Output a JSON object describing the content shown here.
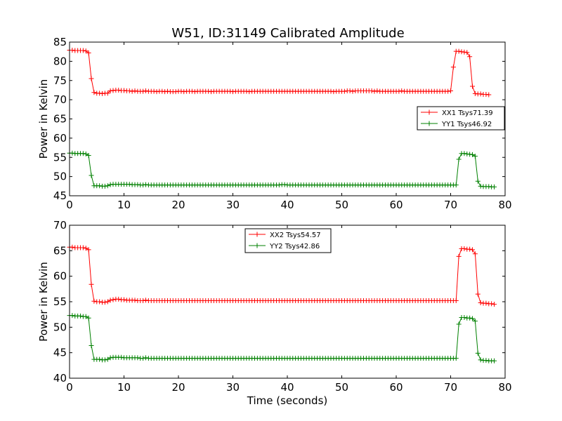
{
  "figure": {
    "title": "W51, ID:31149 Calibrated Amplitude"
  },
  "chart_data": [
    {
      "type": "line",
      "title": "W51, ID:31149 Calibrated Amplitude",
      "xlabel": "",
      "ylabel": "Power in Kelvin",
      "xlim": [
        0,
        80
      ],
      "ylim": [
        45,
        85
      ],
      "x_ticks": [
        0,
        10,
        20,
        30,
        40,
        50,
        60,
        70,
        80
      ],
      "y_ticks": [
        45,
        50,
        55,
        60,
        65,
        70,
        75,
        80,
        85
      ],
      "grid": false,
      "legend_position": "center-right",
      "x_start": 0,
      "x_step": 0.5,
      "series": [
        {
          "name": "XX1 Tsys71.39",
          "color": "#ff0000",
          "marker": "+",
          "values": [
            82.9,
            82.9,
            82.8,
            82.8,
            82.8,
            82.8,
            82.7,
            82.2,
            75.5,
            71.9,
            71.7,
            71.7,
            71.6,
            71.7,
            71.7,
            72.3,
            72.4,
            72.5,
            72.5,
            72.4,
            72.4,
            72.3,
            72.3,
            72.2,
            72.3,
            72.2,
            72.2,
            72.2,
            72.3,
            72.2,
            72.2,
            72.2,
            72.1,
            72.2,
            72.2,
            72.1,
            72.2,
            72.1,
            72.1,
            72.1,
            72.2,
            72.2,
            72.1,
            72.2,
            72.2,
            72.2,
            72.1,
            72.2,
            72.2,
            72.2,
            72.2,
            72.2,
            72.1,
            72.2,
            72.2,
            72.2,
            72.2,
            72.2,
            72.2,
            72.2,
            72.1,
            72.2,
            72.2,
            72.2,
            72.2,
            72.2,
            72.1,
            72.2,
            72.2,
            72.2,
            72.2,
            72.2,
            72.2,
            72.2,
            72.2,
            72.2,
            72.2,
            72.2,
            72.2,
            72.2,
            72.2,
            72.2,
            72.2,
            72.2,
            72.2,
            72.2,
            72.2,
            72.2,
            72.2,
            72.2,
            72.2,
            72.2,
            72.2,
            72.2,
            72.2,
            72.2,
            72.2,
            72.1,
            72.2,
            72.2,
            72.2,
            72.2,
            72.3,
            72.3,
            72.2,
            72.3,
            72.3,
            72.3,
            72.3,
            72.3,
            72.3,
            72.3,
            72.2,
            72.3,
            72.2,
            72.2,
            72.2,
            72.2,
            72.2,
            72.2,
            72.2,
            72.2,
            72.3,
            72.2,
            72.2,
            72.2,
            72.2,
            72.2,
            72.2,
            72.2,
            72.2,
            72.2,
            72.2,
            72.2,
            72.2,
            72.2,
            72.2,
            72.2,
            72.2,
            72.2,
            72.3,
            78.5,
            82.6,
            82.6,
            82.5,
            82.4,
            82.3,
            81.2,
            73.5,
            71.6,
            71.5,
            71.5,
            71.4,
            71.4,
            71.3
          ]
        },
        {
          "name": "YY1 Tsys46.92",
          "color": "#008000",
          "marker": "+",
          "values": [
            56.1,
            56.1,
            56.0,
            56.0,
            56.0,
            56.0,
            55.9,
            55.5,
            50.3,
            47.6,
            47.6,
            47.6,
            47.5,
            47.5,
            47.6,
            47.9,
            48.0,
            48.0,
            48.0,
            48.0,
            48.0,
            48.0,
            48.0,
            47.9,
            47.9,
            47.9,
            47.8,
            47.8,
            47.9,
            47.8,
            47.8,
            47.8,
            47.8,
            47.8,
            47.8,
            47.8,
            47.8,
            47.8,
            47.8,
            47.8,
            47.8,
            47.8,
            47.8,
            47.8,
            47.8,
            47.8,
            47.8,
            47.8,
            47.8,
            47.8,
            47.8,
            47.8,
            47.8,
            47.8,
            47.8,
            47.8,
            47.8,
            47.8,
            47.8,
            47.8,
            47.8,
            47.8,
            47.8,
            47.8,
            47.8,
            47.8,
            47.8,
            47.8,
            47.8,
            47.8,
            47.8,
            47.8,
            47.8,
            47.8,
            47.8,
            47.8,
            47.8,
            47.8,
            47.9,
            47.9,
            47.8,
            47.8,
            47.8,
            47.8,
            47.8,
            47.8,
            47.8,
            47.8,
            47.8,
            47.8,
            47.8,
            47.8,
            47.8,
            47.8,
            47.8,
            47.8,
            47.8,
            47.8,
            47.8,
            47.8,
            47.8,
            47.8,
            47.8,
            47.8,
            47.8,
            47.8,
            47.8,
            47.8,
            47.8,
            47.8,
            47.8,
            47.8,
            47.8,
            47.8,
            47.8,
            47.8,
            47.8,
            47.8,
            47.8,
            47.8,
            47.8,
            47.8,
            47.8,
            47.8,
            47.8,
            47.8,
            47.8,
            47.8,
            47.8,
            47.8,
            47.8,
            47.8,
            47.8,
            47.8,
            47.8,
            47.8,
            47.8,
            47.8,
            47.8,
            47.8,
            47.8,
            47.8,
            47.8,
            54.5,
            56.0,
            56.0,
            55.9,
            55.8,
            55.7,
            55.3,
            48.8,
            47.5,
            47.4,
            47.4,
            47.4,
            47.3,
            47.3
          ]
        }
      ]
    },
    {
      "type": "line",
      "title": "",
      "xlabel": "Time (seconds)",
      "ylabel": "Power in Kelvin",
      "xlim": [
        0,
        80
      ],
      "ylim": [
        40,
        70
      ],
      "x_ticks": [
        0,
        10,
        20,
        30,
        40,
        50,
        60,
        70,
        80
      ],
      "y_ticks": [
        40,
        45,
        50,
        55,
        60,
        65,
        70
      ],
      "grid": false,
      "legend_position": "top-center",
      "x_start": 0,
      "x_step": 0.5,
      "series": [
        {
          "name": "XX2 Tsys54.57",
          "color": "#ff0000",
          "marker": "+",
          "values": [
            65.7,
            65.7,
            65.6,
            65.6,
            65.6,
            65.6,
            65.5,
            65.2,
            58.4,
            55.1,
            55.0,
            55.0,
            54.9,
            54.9,
            55.0,
            55.3,
            55.4,
            55.5,
            55.5,
            55.4,
            55.4,
            55.3,
            55.3,
            55.3,
            55.3,
            55.2,
            55.2,
            55.2,
            55.3,
            55.2,
            55.2,
            55.2,
            55.2,
            55.2,
            55.2,
            55.2,
            55.2,
            55.2,
            55.2,
            55.2,
            55.2,
            55.2,
            55.2,
            55.2,
            55.2,
            55.2,
            55.2,
            55.2,
            55.2,
            55.2,
            55.2,
            55.2,
            55.2,
            55.2,
            55.2,
            55.2,
            55.2,
            55.2,
            55.2,
            55.2,
            55.2,
            55.2,
            55.2,
            55.2,
            55.2,
            55.2,
            55.2,
            55.2,
            55.2,
            55.2,
            55.2,
            55.2,
            55.2,
            55.2,
            55.2,
            55.2,
            55.2,
            55.2,
            55.2,
            55.2,
            55.2,
            55.2,
            55.2,
            55.2,
            55.2,
            55.2,
            55.2,
            55.2,
            55.2,
            55.2,
            55.2,
            55.2,
            55.2,
            55.2,
            55.2,
            55.2,
            55.2,
            55.2,
            55.2,
            55.2,
            55.2,
            55.2,
            55.2,
            55.2,
            55.2,
            55.2,
            55.2,
            55.2,
            55.2,
            55.2,
            55.2,
            55.2,
            55.2,
            55.2,
            55.2,
            55.2,
            55.2,
            55.2,
            55.2,
            55.2,
            55.2,
            55.2,
            55.2,
            55.2,
            55.2,
            55.2,
            55.2,
            55.2,
            55.2,
            55.2,
            55.2,
            55.2,
            55.2,
            55.2,
            55.2,
            55.2,
            55.2,
            55.2,
            55.2,
            55.2,
            55.2,
            55.2,
            55.2,
            63.9,
            65.4,
            65.4,
            65.3,
            65.3,
            65.2,
            64.4,
            56.5,
            54.8,
            54.7,
            54.7,
            54.6,
            54.6,
            54.5
          ]
        },
        {
          "name": "YY2 Tsys42.86",
          "color": "#008000",
          "marker": "+",
          "values": [
            52.3,
            52.3,
            52.2,
            52.2,
            52.2,
            52.1,
            52.1,
            51.8,
            46.4,
            43.7,
            43.7,
            43.7,
            43.6,
            43.6,
            43.7,
            44.0,
            44.1,
            44.1,
            44.1,
            44.1,
            44.0,
            44.0,
            44.0,
            44.0,
            44.0,
            44.0,
            43.9,
            43.9,
            44.0,
            43.9,
            43.9,
            43.9,
            43.9,
            43.9,
            43.9,
            43.9,
            43.9,
            43.9,
            43.9,
            43.9,
            43.9,
            43.9,
            43.9,
            43.9,
            43.9,
            43.9,
            43.9,
            43.9,
            43.9,
            43.9,
            43.9,
            43.9,
            43.9,
            43.9,
            43.9,
            43.9,
            43.9,
            43.9,
            43.9,
            43.9,
            43.9,
            43.9,
            43.9,
            43.9,
            43.9,
            43.9,
            43.9,
            43.9,
            43.9,
            43.9,
            43.9,
            43.9,
            43.9,
            43.9,
            43.9,
            43.9,
            43.9,
            43.9,
            43.9,
            43.9,
            43.9,
            43.9,
            43.9,
            43.9,
            43.9,
            43.9,
            43.9,
            43.9,
            43.9,
            43.9,
            43.9,
            43.9,
            43.9,
            43.9,
            43.9,
            43.9,
            43.9,
            43.9,
            43.9,
            43.9,
            43.9,
            43.9,
            43.9,
            43.9,
            43.9,
            43.9,
            43.9,
            43.9,
            43.9,
            43.9,
            43.9,
            43.9,
            43.9,
            43.9,
            43.9,
            43.9,
            43.9,
            43.9,
            43.9,
            43.9,
            43.9,
            43.9,
            43.9,
            43.9,
            43.9,
            43.9,
            43.9,
            43.9,
            43.9,
            43.9,
            43.9,
            43.9,
            43.9,
            43.9,
            43.9,
            43.9,
            43.9,
            43.9,
            43.9,
            43.9,
            43.9,
            43.9,
            43.9,
            50.6,
            51.9,
            51.9,
            51.8,
            51.8,
            51.7,
            51.2,
            44.9,
            43.6,
            43.5,
            43.5,
            43.4,
            43.4,
            43.4
          ]
        }
      ]
    }
  ]
}
